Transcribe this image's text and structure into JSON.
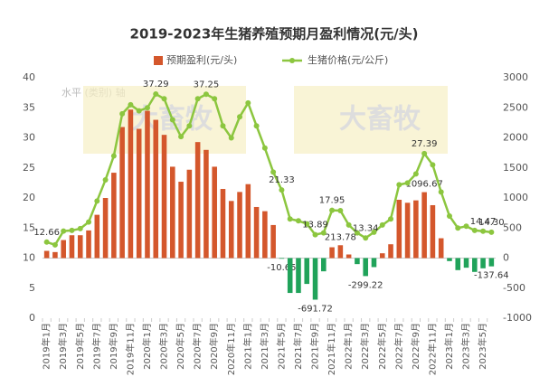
{
  "chart_data": {
    "type": "bar-line",
    "title": "2019-2023年生猪养殖预期月盈利情况(元/头)",
    "axis_annotation": "水平 (类别) 轴",
    "watermark": "大畜牧",
    "categories": [
      "2019年1月",
      null,
      "2019年3月",
      null,
      "2019年5月",
      null,
      "2019年7月",
      null,
      "2019年9月",
      null,
      "2019年11月",
      null,
      "2020年1月",
      null,
      "2020年3月",
      null,
      "2020年5月",
      null,
      "2020年7月",
      null,
      "2020年9月",
      null,
      "2020年11月",
      null,
      "2021年1月",
      null,
      "2021年3月",
      null,
      "2021年5月",
      null,
      "2021年7月",
      null,
      "2021年9月",
      null,
      "2021年11月",
      null,
      "2022年1月",
      null,
      "2022年3月",
      null,
      "2022年5月",
      null,
      "2022年7月",
      null,
      "2022年9月",
      null,
      "2022年11月",
      null,
      "2023年1月",
      null,
      "2023年3月",
      null,
      "2023年5月",
      null
    ],
    "series": [
      {
        "name": "预期盈利(元/头)",
        "kind": "bar",
        "axis": "y2",
        "color": "#d4572c",
        "negative_color": "#20a35a",
        "values": [
          120,
          100,
          300,
          380,
          380,
          460,
          720,
          1000,
          1420,
          2180,
          2470,
          2150,
          2450,
          2300,
          2050,
          1520,
          1270,
          1470,
          1930,
          1800,
          1520,
          1150,
          950,
          1100,
          1230,
          850,
          780,
          550,
          -10.65,
          -580,
          -580,
          -430,
          -691.72,
          -220,
          180,
          213.78,
          60,
          -100,
          -299.22,
          -150,
          80,
          230,
          970,
          920,
          960,
          1096.67,
          880,
          330,
          -50,
          -200,
          -160,
          -230,
          -170,
          -137.64
        ],
        "value_labels": [
          null,
          null,
          null,
          null,
          null,
          null,
          null,
          null,
          null,
          null,
          null,
          null,
          null,
          null,
          null,
          null,
          null,
          null,
          null,
          null,
          null,
          null,
          null,
          null,
          null,
          null,
          null,
          null,
          "-10.65",
          null,
          null,
          null,
          "-691.72",
          null,
          null,
          "213.78",
          null,
          null,
          "-299.22",
          null,
          null,
          null,
          null,
          null,
          null,
          "1096.67",
          null,
          null,
          null,
          null,
          null,
          null,
          null,
          "-137.64"
        ]
      },
      {
        "name": "生猪价格(元/公斤)",
        "kind": "line",
        "color": "#8cc63f",
        "values": [
          12.66,
          12.2,
          14.5,
          14.6,
          14.9,
          16,
          19.5,
          23,
          27,
          34,
          35.5,
          34.5,
          35,
          37.29,
          36.5,
          33,
          30.2,
          32,
          36.5,
          37.25,
          36.5,
          32,
          30,
          33.5,
          35.8,
          32,
          28.3,
          24.3,
          21.33,
          16.5,
          16.2,
          15.7,
          13.89,
          14.2,
          17.95,
          17.9,
          15.5,
          14.2,
          13.34,
          14.3,
          15.5,
          16.5,
          22.2,
          22.5,
          24,
          27.39,
          25.5,
          21,
          17,
          15,
          15.3,
          14.6,
          14.47,
          14.3
        ],
        "value_labels": [
          "12.66",
          null,
          null,
          null,
          null,
          null,
          null,
          null,
          null,
          null,
          null,
          null,
          null,
          "37.29",
          null,
          null,
          null,
          null,
          null,
          "37.25",
          null,
          null,
          null,
          null,
          null,
          null,
          null,
          null,
          "21.33",
          null,
          null,
          null,
          "13.89",
          null,
          "17.95",
          null,
          null,
          null,
          "13.34",
          null,
          null,
          null,
          null,
          null,
          null,
          "27.39",
          null,
          null,
          null,
          null,
          null,
          null,
          "14.47",
          "14.30"
        ]
      }
    ],
    "ylim": [
      0,
      40
    ],
    "yticks": [
      0,
      5,
      10,
      15,
      20,
      25,
      30,
      35,
      40
    ],
    "y2lim": [
      -1000,
      3000
    ],
    "y2ticks": [
      -1000,
      -500,
      0,
      500,
      1000,
      1500,
      2000,
      2500,
      3000
    ],
    "grid": false
  }
}
